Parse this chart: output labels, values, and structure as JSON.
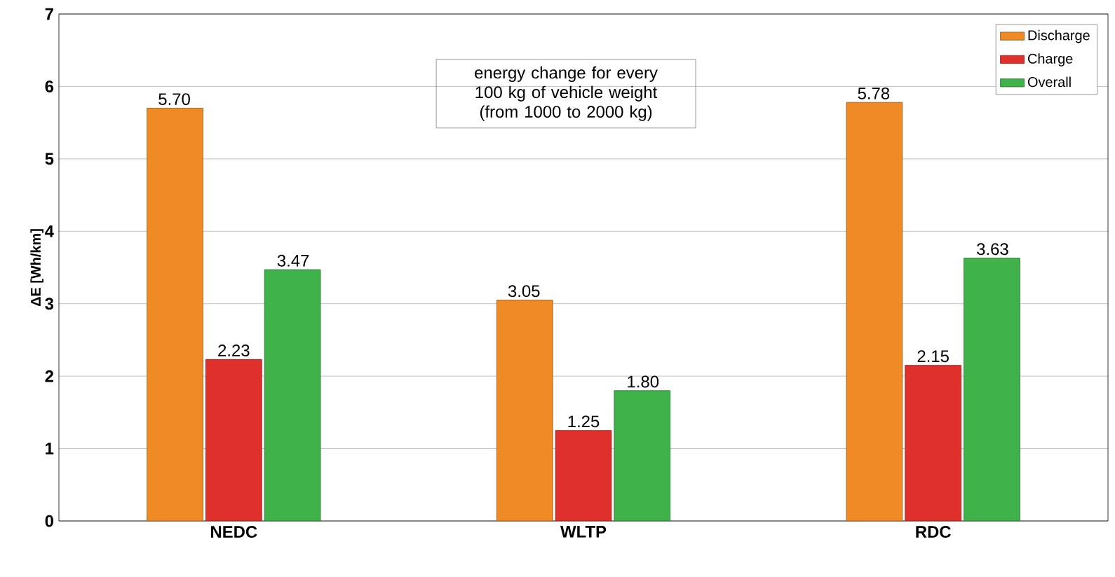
{
  "chart_data": {
    "type": "bar",
    "categories": [
      "NEDC",
      "WLTP",
      "RDC"
    ],
    "series": [
      {
        "name": "Discharge",
        "color": "#f08a24",
        "values": [
          5.7,
          3.05,
          5.78
        ],
        "value_labels": [
          "5.70",
          "3.05",
          "5.78"
        ]
      },
      {
        "name": "Charge",
        "color": "#e0302c",
        "values": [
          2.23,
          1.25,
          2.15
        ],
        "value_labels": [
          "2.23",
          "1.25",
          "2.15"
        ]
      },
      {
        "name": "Overall",
        "color": "#3fb24a",
        "values": [
          3.47,
          1.8,
          3.63
        ],
        "value_labels": [
          "3.47",
          "1.80",
          "3.63"
        ]
      }
    ],
    "ylabel": "ΔE [Wh/km]",
    "ylim": [
      0,
      7
    ],
    "yticks": [
      0,
      1,
      2,
      3,
      4,
      5,
      6,
      7
    ],
    "grid": "y",
    "legend": "top right",
    "annotations": [
      "energy change for every 100 kg of vehicle weight (from 1000 to 2000 kg)"
    ]
  }
}
